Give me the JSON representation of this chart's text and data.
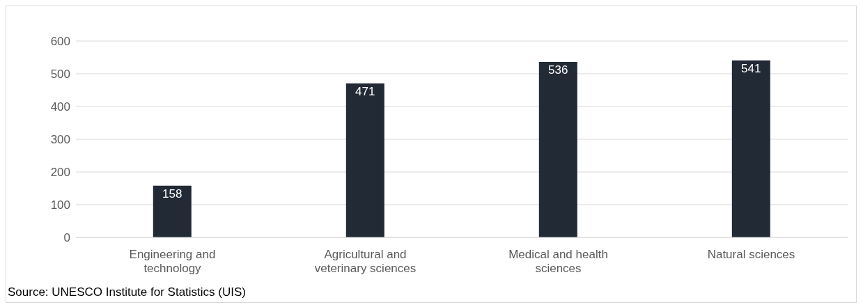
{
  "chart_data": {
    "type": "bar",
    "categories": [
      "Engineering and technology",
      "Agricultural and veterinary sciences",
      "Medical and health sciences",
      "Natural sciences"
    ],
    "values": [
      158,
      471,
      536,
      541
    ],
    "color": "#222a35",
    "ylim": [
      0,
      600
    ],
    "yticks": [
      0,
      100,
      200,
      300,
      400,
      500,
      600
    ],
    "grid": "y",
    "data_labels": true,
    "annotations": [
      "Source: UNESCO Institute for Statistics (UIS)"
    ]
  }
}
